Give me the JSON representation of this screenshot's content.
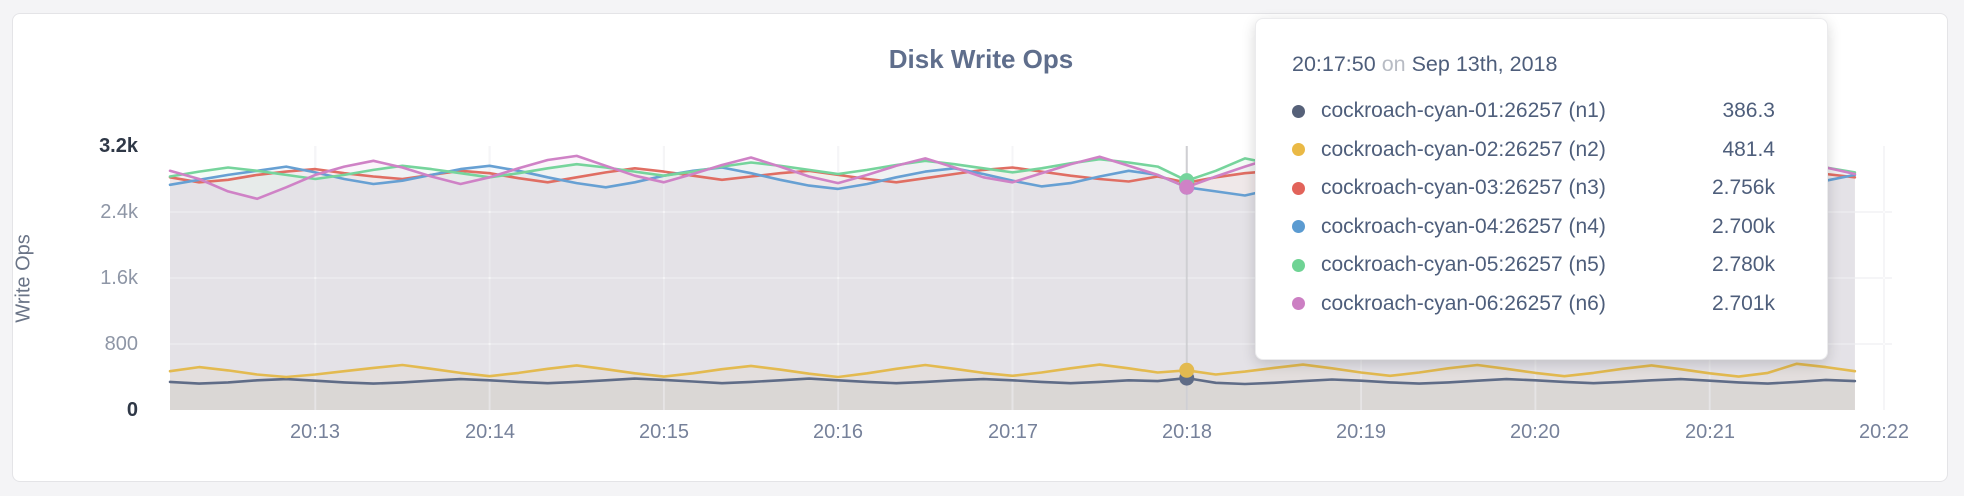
{
  "chart_data": {
    "type": "line",
    "title": "Disk Write Ops",
    "ylabel": "Write Ops",
    "xlabel": "",
    "grid": true,
    "legend_position": "tooltip-overlay",
    "ylim": [
      0,
      3200
    ],
    "y_ticks": [
      {
        "label": "0",
        "value": 0,
        "extreme": true
      },
      {
        "label": "800",
        "value": 800,
        "extreme": false
      },
      {
        "label": "1.6k",
        "value": 1600,
        "extreme": false
      },
      {
        "label": "2.4k",
        "value": 2400,
        "extreme": false
      },
      {
        "label": "3.2k",
        "value": 3200,
        "extreme": true
      }
    ],
    "x_ticks": [
      "20:13",
      "20:14",
      "20:15",
      "20:16",
      "20:17",
      "20:18",
      "20:19",
      "20:20",
      "20:21",
      "20:22"
    ],
    "x_start_time": "20:12:10",
    "x_step_seconds": 10,
    "highlight_index": 35,
    "highlight_time": "20:17:50",
    "series": [
      {
        "name": "cockroach-cyan-01:26257 (n1)",
        "color": "#5f6c87",
        "values": [
          340,
          320,
          335,
          360,
          375,
          355,
          335,
          320,
          335,
          355,
          375,
          360,
          340,
          325,
          340,
          360,
          380,
          365,
          345,
          325,
          340,
          360,
          380,
          360,
          340,
          325,
          340,
          360,
          375,
          360,
          340,
          325,
          340,
          360,
          350,
          386.3,
          330,
          315,
          330,
          350,
          370,
          355,
          335,
          320,
          335,
          355,
          375,
          360,
          340,
          325,
          340,
          360,
          375,
          355,
          335,
          320,
          340,
          365,
          350
        ]
      },
      {
        "name": "cockroach-cyan-02:26257 (n2)",
        "color": "#e3ba50",
        "values": [
          470,
          520,
          480,
          430,
          400,
          430,
          470,
          510,
          545,
          500,
          450,
          410,
          450,
          500,
          540,
          495,
          445,
          405,
          445,
          495,
          535,
          490,
          440,
          400,
          445,
          500,
          545,
          500,
          450,
          415,
          455,
          505,
          550,
          505,
          455,
          481.4,
          430,
          465,
          510,
          550,
          505,
          455,
          415,
          455,
          505,
          545,
          500,
          450,
          410,
          450,
          500,
          540,
          495,
          445,
          405,
          450,
          560,
          520,
          470
        ]
      },
      {
        "name": "cockroach-cyan-03:26257 (n3)",
        "color": "#e06e63",
        "values": [
          2820,
          2760,
          2790,
          2850,
          2890,
          2920,
          2870,
          2830,
          2800,
          2850,
          2900,
          2870,
          2810,
          2760,
          2820,
          2880,
          2930,
          2890,
          2840,
          2790,
          2830,
          2870,
          2900,
          2850,
          2800,
          2760,
          2810,
          2860,
          2910,
          2940,
          2890,
          2840,
          2800,
          2770,
          2830,
          2756,
          2820,
          2870,
          2900,
          2860,
          2810,
          2770,
          2820,
          2880,
          2920,
          2870,
          2830,
          2790,
          2840,
          2890,
          2930,
          2880,
          2830,
          2780,
          2830,
          2880,
          2910,
          2860,
          2820
        ]
      },
      {
        "name": "cockroach-cyan-04:26257 (n4)",
        "color": "#67a0d3",
        "values": [
          2730,
          2790,
          2850,
          2900,
          2950,
          2880,
          2800,
          2740,
          2780,
          2850,
          2920,
          2960,
          2900,
          2820,
          2750,
          2700,
          2760,
          2840,
          2900,
          2940,
          2870,
          2790,
          2720,
          2680,
          2740,
          2820,
          2890,
          2930,
          2860,
          2780,
          2710,
          2750,
          2830,
          2900,
          2850,
          2700,
          2650,
          2600,
          2680,
          2760,
          2840,
          2900,
          2840,
          2760,
          2690,
          2730,
          2810,
          2880,
          2920,
          2850,
          2770,
          2700,
          2740,
          2820,
          2890,
          2930,
          2860,
          2780,
          2850
        ]
      },
      {
        "name": "cockroach-cyan-05:26257 (n5)",
        "color": "#76d49c",
        "values": [
          2830,
          2890,
          2940,
          2900,
          2850,
          2800,
          2850,
          2910,
          2960,
          2920,
          2870,
          2820,
          2870,
          2930,
          2980,
          2940,
          2890,
          2840,
          2890,
          2950,
          3000,
          2960,
          2910,
          2860,
          2910,
          2970,
          3020,
          2980,
          2930,
          2880,
          2930,
          2990,
          3040,
          3000,
          2950,
          2780,
          2900,
          3050,
          2980,
          2910,
          2860,
          2910,
          2970,
          3020,
          2970,
          2920,
          2870,
          2920,
          2980,
          3030,
          2990,
          2940,
          2890,
          2940,
          3000,
          3040,
          2990,
          2940,
          2880
        ]
      },
      {
        "name": "cockroach-cyan-06:26257 (n6)",
        "color": "#cf82c6",
        "values": [
          2900,
          2800,
          2650,
          2560,
          2700,
          2850,
          2950,
          3020,
          2940,
          2830,
          2740,
          2820,
          2930,
          3030,
          3080,
          2960,
          2840,
          2760,
          2860,
          2970,
          3060,
          2950,
          2830,
          2750,
          2850,
          2960,
          3050,
          2940,
          2820,
          2760,
          2870,
          2980,
          3070,
          2960,
          2850,
          2701,
          2830,
          2950,
          3060,
          2970,
          2860,
          2780,
          2880,
          2990,
          3070,
          2960,
          2850,
          2790,
          2890,
          3000,
          3060,
          2950,
          2840,
          2780,
          2880,
          2990,
          3050,
          2940,
          2860
        ]
      }
    ]
  },
  "tooltip": {
    "time": "20:17:50",
    "conj": "on",
    "date": "Sep 13th, 2018",
    "rows": [
      {
        "label": "cockroach-cyan-01:26257 (n1)",
        "value": "386.3",
        "color": "#566179"
      },
      {
        "label": "cockroach-cyan-02:26257 (n2)",
        "value": "481.4",
        "color": "#eab945"
      },
      {
        "label": "cockroach-cyan-03:26257 (n3)",
        "value": "2.756k",
        "color": "#e2635a"
      },
      {
        "label": "cockroach-cyan-04:26257 (n4)",
        "value": "2.700k",
        "color": "#5b9bd1"
      },
      {
        "label": "cockroach-cyan-05:26257 (n5)",
        "value": "2.780k",
        "color": "#6fd394"
      },
      {
        "label": "cockroach-cyan-06:26257 (n6)",
        "value": "2.701k",
        "color": "#cc7fc3"
      }
    ]
  },
  "colors": {
    "page_background": "#f4f4f6",
    "card_background": "#ffffff",
    "card_border": "#e4e4e7",
    "gridline": "#ebebee",
    "crosshair": "#cfcfd3",
    "fill_opacity": 0.08
  }
}
